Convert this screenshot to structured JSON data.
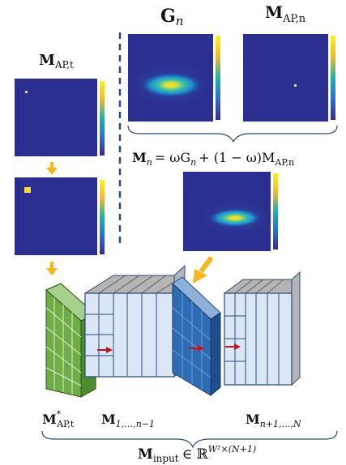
{
  "labels": {
    "g_n": "G",
    "g_n_sub": "n",
    "m_ap_n": "M",
    "m_ap_n_sub": "AP,n",
    "m_ap_t": "M",
    "m_ap_t_sub": "AP,t",
    "formula": "M",
    "formula_sub": "n",
    "formula_rest": "= ωG",
    "formula_rest_sub": "n",
    "formula_tail": "+ (1 − ω)M",
    "formula_tail_sub": "AP,n",
    "cube1_label": "M",
    "cube1_sup": "*",
    "cube1_sub": "AP,t",
    "cube2_label": "M",
    "cube2_sub": "1,…,n−1",
    "cube4_label": "M",
    "cube4_sub": "n+1,…,N",
    "input_label": "M",
    "input_sub": "input",
    "input_rest": "∈ ℝ",
    "input_sup": "W²×(N+1)"
  },
  "colors": {
    "heatmap_bg": "#2b2f8f",
    "heatmap_mid": "#22a6c6",
    "heatmap_hot": "#f4dd32",
    "arrow_orange": "#f5b71b",
    "arrow_red": "#c0141b",
    "dashed_line": "#2c4a78",
    "green_face": "#70ad47",
    "green_side": "#4e8a2e",
    "light_blue_face": "#dbe6f6",
    "blue_face": "#2e6cb5",
    "blue_side": "#1f4e8c",
    "gray_top": "#9a9a9a"
  }
}
